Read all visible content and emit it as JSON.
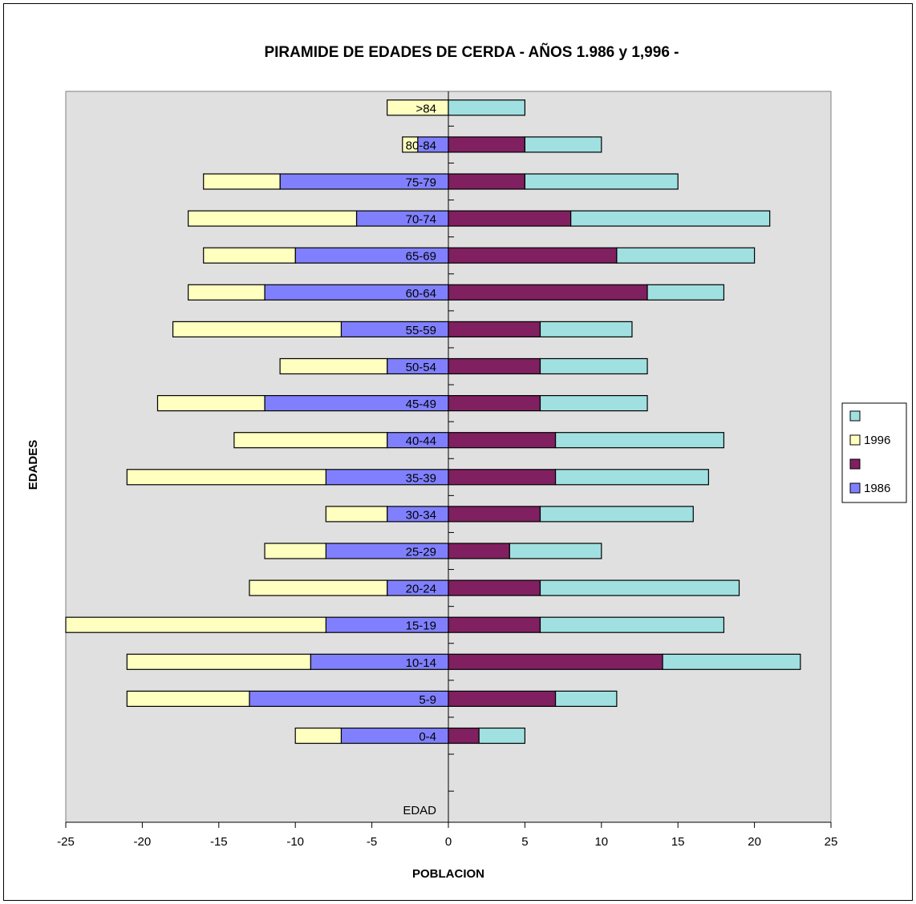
{
  "chart_data": {
    "type": "bar",
    "title": "PIRAMIDE DE EDADES DE CERDA - AÑOS 1.986 y 1,996 -",
    "xlabel": "POBLACION",
    "ylabel": "EDADES",
    "category_axis_label": "EDAD",
    "categories": [
      "0-4",
      "5-9",
      "10-14",
      "15-19",
      "20-24",
      "25-29",
      "30-34",
      "35-39",
      "40-44",
      "45-49",
      "50-54",
      "55-59",
      "60-64",
      "65-69",
      "70-74",
      "75-79",
      "80-84",
      ">84"
    ],
    "xlim": [
      -25,
      25
    ],
    "xticks": [
      -25,
      -20,
      -15,
      -10,
      -5,
      0,
      5,
      10,
      15,
      20,
      25
    ],
    "stacked": true,
    "grid": false,
    "legend_position": "right",
    "series": [
      {
        "name": "1986",
        "side": "left",
        "color": "#8080ff",
        "values": [
          -7,
          -13,
          -9,
          -8,
          -4,
          -8,
          -4,
          -8,
          -4,
          -12,
          -4,
          -7,
          -12,
          -10,
          -6,
          -11,
          -2,
          0
        ]
      },
      {
        "name": "1996",
        "side": "left",
        "color": "#ffffc0",
        "values": [
          -3,
          -8,
          -12,
          -17,
          -9,
          -4,
          -4,
          -13,
          -10,
          -7,
          -7,
          -11,
          -5,
          -6,
          -11,
          -5,
          -1,
          -4
        ]
      },
      {
        "name": "",
        "side": "right",
        "color": "#802060",
        "values": [
          2,
          7,
          14,
          6,
          6,
          4,
          6,
          7,
          7,
          6,
          6,
          6,
          13,
          11,
          8,
          5,
          5,
          0
        ]
      },
      {
        "name": "",
        "side": "right",
        "color": "#a0e0e0",
        "values": [
          3,
          4,
          9,
          12,
          13,
          6,
          10,
          10,
          11,
          7,
          7,
          6,
          5,
          9,
          13,
          10,
          5,
          5
        ]
      }
    ],
    "legend_order": [
      3,
      1,
      2,
      0
    ],
    "plot_background": "#e0e0e0"
  }
}
